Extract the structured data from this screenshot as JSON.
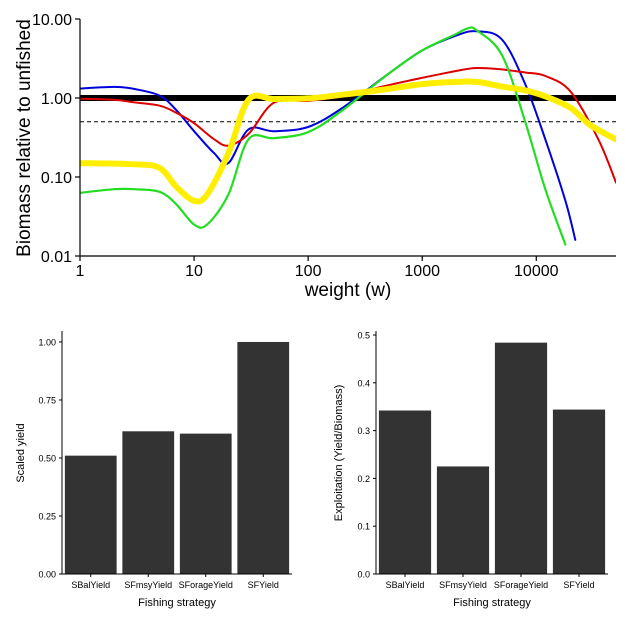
{
  "chart_data": [
    {
      "type": "line",
      "xlabel": "weight (w)",
      "ylabel": "Biomass relative to unfished",
      "xscale": "log",
      "yscale": "log",
      "xlim": [
        1,
        50000
      ],
      "ylim": [
        0.01,
        10
      ],
      "xticks": [
        1,
        10,
        100,
        1000,
        10000
      ],
      "xtick_labels": [
        "1",
        "10",
        "100",
        "1000",
        "10000"
      ],
      "yticks": [
        0.01,
        0.1,
        1,
        10
      ],
      "ytick_labels": [
        "0.01",
        "0.10",
        "1.00",
        "10.00"
      ],
      "reference_lines": [
        {
          "y": 1.0,
          "style": "solid",
          "color": "#000000"
        },
        {
          "y": 0.5,
          "style": "dashed",
          "color": "#000000"
        }
      ],
      "series": [
        {
          "color": "#0000dd",
          "points": [
            [
              1,
              1.32
            ],
            [
              2,
              1.38
            ],
            [
              3,
              1.3
            ],
            [
              5,
              1.07
            ],
            [
              7,
              0.7
            ],
            [
              10,
              0.38
            ],
            [
              15,
              0.2
            ],
            [
              20,
              0.15
            ],
            [
              30,
              0.4
            ],
            [
              50,
              0.38
            ],
            [
              100,
              0.43
            ],
            [
              200,
              0.75
            ],
            [
              500,
              2.0
            ],
            [
              1000,
              4.0
            ],
            [
              2000,
              6.2
            ],
            [
              3000,
              7.0
            ],
            [
              5000,
              5.5
            ],
            [
              8000,
              1.5
            ],
            [
              12000,
              0.3
            ],
            [
              18000,
              0.05
            ],
            [
              22000,
              0.016
            ]
          ]
        },
        {
          "color": "#dd0000",
          "points": [
            [
              1,
              0.98
            ],
            [
              2,
              0.95
            ],
            [
              3,
              0.88
            ],
            [
              5,
              0.8
            ],
            [
              7,
              0.65
            ],
            [
              10,
              0.48
            ],
            [
              15,
              0.3
            ],
            [
              20,
              0.25
            ],
            [
              30,
              0.35
            ],
            [
              50,
              0.87
            ],
            [
              100,
              0.92
            ],
            [
              200,
              1.05
            ],
            [
              500,
              1.45
            ],
            [
              1000,
              1.8
            ],
            [
              2000,
              2.2
            ],
            [
              3000,
              2.4
            ],
            [
              5000,
              2.3
            ],
            [
              8000,
              2.1
            ],
            [
              12000,
              1.9
            ],
            [
              20000,
              1.2
            ],
            [
              35000,
              0.3
            ],
            [
              50000,
              0.085
            ]
          ]
        },
        {
          "color": "#22dd22",
          "points": [
            [
              1,
              0.063
            ],
            [
              2,
              0.07
            ],
            [
              3,
              0.07
            ],
            [
              5,
              0.065
            ],
            [
              7,
              0.045
            ],
            [
              10,
              0.025
            ],
            [
              13,
              0.025
            ],
            [
              20,
              0.06
            ],
            [
              30,
              0.3
            ],
            [
              50,
              0.31
            ],
            [
              100,
              0.37
            ],
            [
              200,
              0.7
            ],
            [
              500,
              2.0
            ],
            [
              1000,
              4.0
            ],
            [
              2000,
              6.5
            ],
            [
              2500,
              7.6
            ],
            [
              3000,
              7.2
            ],
            [
              5000,
              3.5
            ],
            [
              8000,
              0.5
            ],
            [
              12000,
              0.07
            ],
            [
              18000,
              0.014
            ]
          ]
        },
        {
          "color": "#ffee00",
          "points": [
            [
              1,
              0.15
            ],
            [
              3,
              0.145
            ],
            [
              5,
              0.13
            ],
            [
              7,
              0.075
            ],
            [
              10,
              0.05
            ],
            [
              13,
              0.06
            ],
            [
              20,
              0.2
            ],
            [
              30,
              0.95
            ],
            [
              50,
              0.97
            ],
            [
              100,
              0.99
            ],
            [
              200,
              1.1
            ],
            [
              500,
              1.3
            ],
            [
              1000,
              1.5
            ],
            [
              2000,
              1.6
            ],
            [
              3000,
              1.6
            ],
            [
              5000,
              1.4
            ],
            [
              8000,
              1.25
            ],
            [
              12000,
              1.05
            ],
            [
              20000,
              0.75
            ],
            [
              30000,
              0.45
            ],
            [
              50000,
              0.3
            ]
          ]
        }
      ],
      "legend": "none",
      "grid": false
    },
    {
      "type": "bar",
      "categories": [
        "SBalYield",
        "SFmsyYield",
        "SForageYield",
        "SFYield"
      ],
      "values": [
        0.51,
        0.615,
        0.605,
        1.0
      ],
      "xlabel": "Fishing strategy",
      "ylabel": "Scaled yield",
      "ylim": [
        0,
        1.03
      ],
      "yticks": [
        0,
        0.25,
        0.5,
        0.75,
        1.0
      ],
      "ytick_labels": [
        "0.00",
        "0.25",
        "0.50",
        "0.75",
        "1.00"
      ],
      "bar_color": "#333333",
      "grid": false
    },
    {
      "type": "bar",
      "categories": [
        "SBalYield",
        "SFmsyYield",
        "SForageYield",
        "SFYield"
      ],
      "values": [
        0.342,
        0.225,
        0.484,
        0.344
      ],
      "xlabel": "Fishing strategy",
      "ylabel": "Exploitation (Yield/Biomass)",
      "ylim": [
        0,
        0.5
      ],
      "yticks": [
        0,
        0.1,
        0.2,
        0.3,
        0.4,
        0.5
      ],
      "ytick_labels": [
        "0.0",
        "0.1",
        "0.2",
        "0.3",
        "0.4",
        "0.5"
      ],
      "bar_color": "#333333",
      "grid": false
    }
  ]
}
